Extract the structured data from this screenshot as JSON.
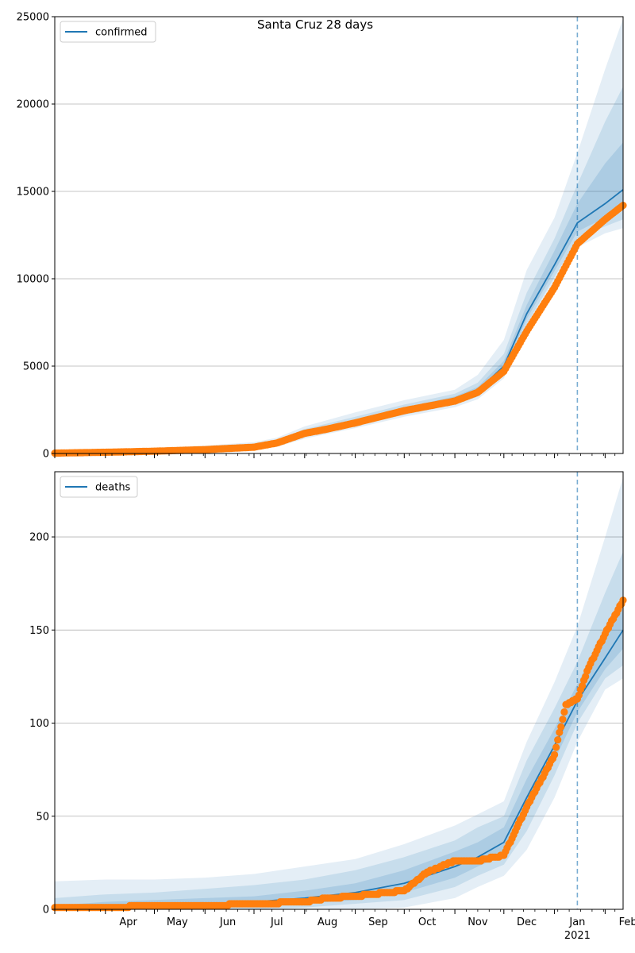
{
  "title": "Santa Cruz 28 days",
  "colors": {
    "line": "#1f77b4",
    "obs": "#ff7f0e",
    "band": "#1f77b4",
    "grid": "#b0b0b0",
    "vline": "#1f77b4"
  },
  "x_axis": {
    "month_labels": [
      "Apr",
      "May",
      "Jun",
      "Jul",
      "Aug",
      "Sep",
      "Oct",
      "Nov",
      "Dec",
      "Jan",
      "Feb"
    ],
    "year_label": "2021"
  },
  "chart_data": [
    {
      "type": "line",
      "legend": "confirmed",
      "legend_position": "top-left",
      "grid": "horizontal",
      "xlim": [
        "2020-03-01",
        "2021-02-12"
      ],
      "ylim": [
        0,
        25000
      ],
      "yticks": [
        "0",
        "5000",
        "10000",
        "15000",
        "20000",
        "25000"
      ],
      "forecast_start": "2021-01-15",
      "model_x": [
        "2020-03-01",
        "2020-04-01",
        "2020-05-01",
        "2020-06-01",
        "2020-07-01",
        "2020-07-15",
        "2020-08-01",
        "2020-09-01",
        "2020-10-01",
        "2020-11-01",
        "2020-11-15",
        "2020-12-01",
        "2020-12-15",
        "2021-01-01",
        "2021-01-15",
        "2021-02-01",
        "2021-02-12"
      ],
      "model_y": [
        20,
        70,
        130,
        220,
        380,
        600,
        1150,
        1800,
        2450,
        3100,
        3600,
        5000,
        8000,
        10800,
        13200,
        14300,
        15100
      ],
      "bands": [
        {
          "lo": [
            0,
            20,
            50,
            130,
            240,
            380,
            850,
            1450,
            2100,
            2650,
            3100,
            4300,
            7000,
            9600,
            11800,
            12600,
            12900
          ],
          "hi": [
            90,
            200,
            300,
            450,
            650,
            900,
            1550,
            2350,
            3050,
            3650,
            4500,
            6500,
            10500,
            13500,
            17200,
            22000,
            24900
          ]
        },
        {
          "lo": [
            5,
            40,
            80,
            170,
            290,
            460,
            950,
            1560,
            2220,
            2800,
            3250,
            4550,
            7400,
            10100,
            12300,
            13000,
            13400
          ],
          "hi": [
            60,
            140,
            220,
            350,
            520,
            760,
            1400,
            2100,
            2800,
            3420,
            4050,
            5700,
            9200,
            12300,
            15400,
            19000,
            21000
          ]
        },
        {
          "lo": [
            10,
            55,
            105,
            195,
            335,
            530,
            1030,
            1660,
            2320,
            2930,
            3400,
            4750,
            7700,
            10450,
            12700,
            13500,
            14000
          ],
          "hi": [
            35,
            95,
            165,
            280,
            440,
            680,
            1260,
            1950,
            2620,
            3270,
            3800,
            5300,
            8500,
            11600,
            14300,
            16600,
            17800
          ]
        }
      ],
      "obs_x": [
        "2020-03-01",
        "2020-04-01",
        "2020-05-01",
        "2020-06-01",
        "2020-07-01",
        "2020-07-15",
        "2020-08-01",
        "2020-08-15",
        "2020-09-01",
        "2020-10-01",
        "2020-11-01",
        "2020-11-15",
        "2020-12-01",
        "2020-12-15",
        "2021-01-01",
        "2021-01-15",
        "2021-02-01",
        "2021-02-12"
      ],
      "obs_y": [
        20,
        70,
        130,
        220,
        360,
        600,
        1150,
        1400,
        1750,
        2450,
        3000,
        3500,
        4700,
        7000,
        9500,
        12000,
        13400,
        14200
      ]
    },
    {
      "type": "line",
      "legend": "deaths",
      "legend_position": "top-left",
      "grid": "horizontal",
      "xlim": [
        "2020-03-01",
        "2021-02-12"
      ],
      "ylim": [
        0,
        235
      ],
      "yticks": [
        "0",
        "50",
        "100",
        "150",
        "200"
      ],
      "forecast_start": "2021-01-15",
      "model_x": [
        "2020-03-01",
        "2020-04-01",
        "2020-05-01",
        "2020-06-01",
        "2020-07-01",
        "2020-08-01",
        "2020-09-01",
        "2020-10-01",
        "2020-11-01",
        "2020-11-15",
        "2020-12-01",
        "2020-12-15",
        "2021-01-01",
        "2021-01-15",
        "2021-02-01",
        "2021-02-12"
      ],
      "model_y": [
        1,
        2,
        2,
        3,
        4,
        6,
        9,
        14,
        23,
        28,
        36,
        60,
        88,
        112,
        135,
        150
      ],
      "bands": [
        {
          "lo": [
            0,
            0,
            0,
            0,
            0,
            0,
            0,
            1,
            6,
            12,
            18,
            32,
            60,
            90,
            118,
            124
          ],
          "hi": [
            15,
            16,
            16,
            17,
            19,
            23,
            27,
            35,
            45,
            51,
            58,
            90,
            122,
            152,
            200,
            232
          ]
        },
        {
          "lo": [
            0,
            0,
            0,
            0,
            0,
            1,
            3,
            5,
            12,
            18,
            24,
            42,
            72,
            100,
            124,
            131
          ],
          "hi": [
            6,
            8,
            9,
            11,
            13,
            16,
            21,
            28,
            37,
            44,
            50,
            80,
            108,
            133,
            170,
            192
          ]
        },
        {
          "lo": [
            0,
            1,
            1,
            1,
            2,
            3,
            5,
            9,
            17,
            23,
            29,
            51,
            80,
            106,
            129,
            140
          ],
          "hi": [
            2,
            4,
            5,
            6,
            7,
            10,
            14,
            21,
            31,
            36,
            44,
            70,
            97,
            121,
            150,
            162
          ]
        }
      ],
      "obs_x": [
        "2020-03-01",
        "2020-04-01",
        "2020-05-01",
        "2020-06-01",
        "2020-07-01",
        "2020-08-01",
        "2020-08-15",
        "2020-09-01",
        "2020-10-01",
        "2020-10-15",
        "2020-11-01",
        "2020-11-15",
        "2020-12-01",
        "2020-12-15",
        "2021-01-01",
        "2021-01-08",
        "2021-01-15",
        "2021-01-22",
        "2021-02-01",
        "2021-02-12"
      ],
      "obs_y": [
        1,
        1,
        2,
        2,
        3,
        4,
        6,
        7,
        10,
        20,
        26,
        26,
        29,
        55,
        83,
        110,
        113,
        130,
        148,
        166
      ]
    }
  ]
}
